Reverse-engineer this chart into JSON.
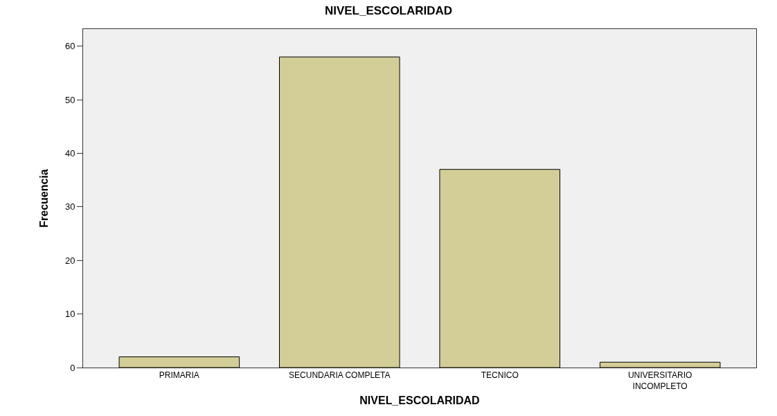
{
  "chart_data": {
    "type": "bar",
    "title": "NIVEL_ESCOLARIDAD",
    "xlabel": "NIVEL_ESCOLARIDAD",
    "ylabel": "Frecuencia",
    "categories": [
      "PRIMARIA",
      "SECUNDARIA COMPLETA",
      "TECNICO",
      "UNIVERSITARIO INCOMPLETO"
    ],
    "values": [
      2,
      58,
      37,
      1
    ],
    "color": "#d3cd97",
    "ylim": [
      0,
      63.2
    ],
    "yticks": [
      0,
      10,
      20,
      30,
      40,
      50,
      60
    ],
    "grid": false,
    "legend": false
  }
}
